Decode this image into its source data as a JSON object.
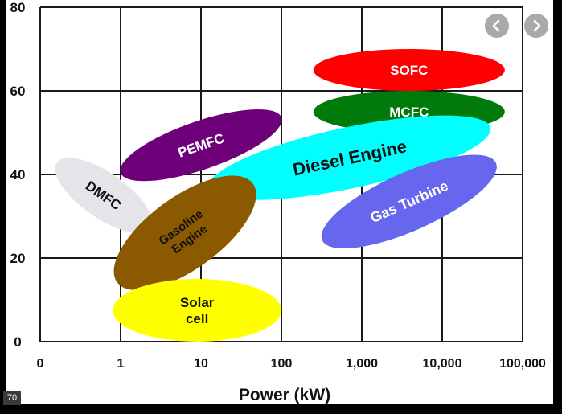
{
  "chart_data": {
    "type": "scatter",
    "title": "",
    "xlabel": "Power (kW)",
    "ylabel": "",
    "x_scale": "log",
    "xlim": [
      0.1,
      100000
    ],
    "ylim": [
      0,
      80
    ],
    "grid": true,
    "x_tick_labels": [
      "0",
      "1",
      "10",
      "100",
      "1,000",
      "10,000",
      "100,000"
    ],
    "x_tick_values": [
      0.1,
      1,
      10,
      100,
      1000,
      10000,
      100000
    ],
    "y_tick_labels": [
      "0",
      "20",
      "40",
      "60",
      "80"
    ],
    "y_tick_values": [
      0,
      20,
      40,
      60,
      80
    ],
    "regions": [
      {
        "label": "SOFC",
        "x_range_kw": [
          250,
          60000
        ],
        "y_range": [
          60,
          70
        ],
        "color": "#ff0000",
        "text_color": "#ffffff"
      },
      {
        "label": "MCFC",
        "x_range_kw": [
          250,
          60000
        ],
        "y_range": [
          50,
          60
        ],
        "color": "#007a0a",
        "text_color": "#ffffff"
      },
      {
        "label": "PEMFC",
        "x_range_kw": [
          1,
          100
        ],
        "y_range": [
          37,
          57
        ],
        "color": "#6e007a",
        "text_color": "#ffffff"
      },
      {
        "label": "Diesel Engine",
        "x_range_kw": [
          10,
          50000
        ],
        "y_range": [
          33,
          55
        ],
        "color": "#00ffff",
        "text_color": "#111111"
      },
      {
        "label": "DMFC",
        "x_range_kw": [
          0.15,
          2.5
        ],
        "y_range": [
          26,
          44
        ],
        "color": "#e4e4e9",
        "text_color": "#111111"
      },
      {
        "label": "Gas Turbine",
        "x_range_kw": [
          250,
          60000
        ],
        "y_range": [
          22,
          45
        ],
        "color": "#6666ee",
        "text_color": "#ffffff"
      },
      {
        "label": "Gasoline Engine",
        "x_range_kw": [
          0.8,
          50
        ],
        "y_range": [
          13,
          39
        ],
        "color": "#8b5a00",
        "text_color": "#111111"
      },
      {
        "label": "Solar cell",
        "x_range_kw": [
          0.8,
          100
        ],
        "y_range": [
          0,
          15
        ],
        "color": "#ffff00",
        "text_color": "#111111"
      }
    ]
  },
  "ui": {
    "prev_icon": "chevron-left-icon",
    "next_icon": "chevron-right-icon",
    "badge_text": "70"
  }
}
